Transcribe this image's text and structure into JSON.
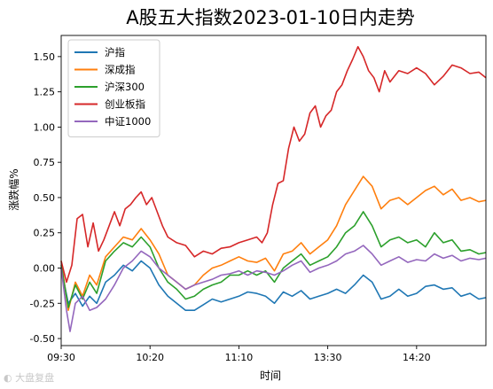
{
  "chart_data": {
    "type": "line",
    "title": "A股五大指数2023-01-10日内走势",
    "xlabel": "时间",
    "ylabel": "涨跌幅%",
    "ylim": [
      -0.55,
      1.65
    ],
    "yticks": [
      "-0.50",
      "-0.25",
      "0.00",
      "0.25",
      "0.50",
      "0.75",
      "1.00",
      "1.25",
      "1.50"
    ],
    "yticks_values": [
      -0.5,
      -0.25,
      0,
      0.25,
      0.5,
      0.75,
      1.0,
      1.25,
      1.5
    ],
    "xticks": [
      "09:30",
      "10:20",
      "11:10",
      "13:30",
      "14:20"
    ],
    "xticks_index": [
      0,
      50,
      100,
      150,
      200
    ],
    "x_count": 240,
    "legend_position": "top-left",
    "grid": false,
    "series": [
      {
        "name": "沪指",
        "color": "#1f77b4",
        "points": [
          [
            0,
            0.0
          ],
          [
            4,
            -0.25
          ],
          [
            8,
            -0.18
          ],
          [
            12,
            -0.27
          ],
          [
            16,
            -0.2
          ],
          [
            20,
            -0.25
          ],
          [
            25,
            -0.1
          ],
          [
            30,
            -0.05
          ],
          [
            35,
            0.02
          ],
          [
            40,
            -0.02
          ],
          [
            45,
            0.05
          ],
          [
            50,
            0.0
          ],
          [
            55,
            -0.12
          ],
          [
            60,
            -0.2
          ],
          [
            65,
            -0.25
          ],
          [
            70,
            -0.3
          ],
          [
            75,
            -0.3
          ],
          [
            80,
            -0.26
          ],
          [
            85,
            -0.22
          ],
          [
            90,
            -0.24
          ],
          [
            95,
            -0.22
          ],
          [
            100,
            -0.2
          ],
          [
            105,
            -0.17
          ],
          [
            110,
            -0.18
          ],
          [
            115,
            -0.2
          ],
          [
            120,
            -0.25
          ],
          [
            125,
            -0.17
          ],
          [
            130,
            -0.2
          ],
          [
            135,
            -0.16
          ],
          [
            140,
            -0.22
          ],
          [
            145,
            -0.2
          ],
          [
            150,
            -0.18
          ],
          [
            155,
            -0.15
          ],
          [
            160,
            -0.18
          ],
          [
            165,
            -0.12
          ],
          [
            170,
            -0.05
          ],
          [
            175,
            -0.1
          ],
          [
            180,
            -0.22
          ],
          [
            185,
            -0.2
          ],
          [
            190,
            -0.15
          ],
          [
            195,
            -0.2
          ],
          [
            200,
            -0.18
          ],
          [
            205,
            -0.13
          ],
          [
            210,
            -0.12
          ],
          [
            215,
            -0.15
          ],
          [
            220,
            -0.14
          ],
          [
            225,
            -0.2
          ],
          [
            230,
            -0.18
          ],
          [
            235,
            -0.22
          ],
          [
            239,
            -0.21
          ]
        ]
      },
      {
        "name": "深成指",
        "color": "#ff7f0e",
        "points": [
          [
            0,
            0.05
          ],
          [
            4,
            -0.3
          ],
          [
            8,
            -0.1
          ],
          [
            12,
            -0.2
          ],
          [
            16,
            -0.05
          ],
          [
            20,
            -0.12
          ],
          [
            25,
            0.08
          ],
          [
            30,
            0.15
          ],
          [
            35,
            0.22
          ],
          [
            40,
            0.2
          ],
          [
            45,
            0.28
          ],
          [
            50,
            0.2
          ],
          [
            55,
            0.1
          ],
          [
            60,
            -0.05
          ],
          [
            65,
            -0.1
          ],
          [
            70,
            -0.15
          ],
          [
            75,
            -0.12
          ],
          [
            80,
            -0.05
          ],
          [
            85,
            0.0
          ],
          [
            90,
            0.02
          ],
          [
            95,
            0.05
          ],
          [
            100,
            0.08
          ],
          [
            105,
            0.05
          ],
          [
            110,
            0.04
          ],
          [
            115,
            0.07
          ],
          [
            120,
            -0.02
          ],
          [
            125,
            0.1
          ],
          [
            130,
            0.12
          ],
          [
            135,
            0.18
          ],
          [
            140,
            0.1
          ],
          [
            145,
            0.15
          ],
          [
            150,
            0.2
          ],
          [
            155,
            0.3
          ],
          [
            160,
            0.45
          ],
          [
            165,
            0.55
          ],
          [
            170,
            0.65
          ],
          [
            175,
            0.58
          ],
          [
            180,
            0.42
          ],
          [
            185,
            0.48
          ],
          [
            190,
            0.5
          ],
          [
            195,
            0.45
          ],
          [
            200,
            0.5
          ],
          [
            205,
            0.55
          ],
          [
            210,
            0.58
          ],
          [
            215,
            0.52
          ],
          [
            220,
            0.56
          ],
          [
            225,
            0.48
          ],
          [
            230,
            0.5
          ],
          [
            235,
            0.47
          ],
          [
            239,
            0.48
          ]
        ]
      },
      {
        "name": "沪深300",
        "color": "#2ca02c",
        "points": [
          [
            0,
            0.02
          ],
          [
            4,
            -0.28
          ],
          [
            8,
            -0.12
          ],
          [
            12,
            -0.22
          ],
          [
            16,
            -0.1
          ],
          [
            20,
            -0.18
          ],
          [
            25,
            0.05
          ],
          [
            30,
            0.12
          ],
          [
            35,
            0.18
          ],
          [
            40,
            0.15
          ],
          [
            45,
            0.22
          ],
          [
            50,
            0.15
          ],
          [
            55,
            0.0
          ],
          [
            60,
            -0.1
          ],
          [
            65,
            -0.15
          ],
          [
            70,
            -0.22
          ],
          [
            75,
            -0.2
          ],
          [
            80,
            -0.15
          ],
          [
            85,
            -0.12
          ],
          [
            90,
            -0.1
          ],
          [
            95,
            -0.05
          ],
          [
            100,
            -0.05
          ],
          [
            105,
            -0.02
          ],
          [
            110,
            -0.05
          ],
          [
            115,
            -0.02
          ],
          [
            120,
            -0.1
          ],
          [
            125,
            0.0
          ],
          [
            130,
            0.05
          ],
          [
            135,
            0.1
          ],
          [
            140,
            0.02
          ],
          [
            145,
            0.05
          ],
          [
            150,
            0.08
          ],
          [
            155,
            0.15
          ],
          [
            160,
            0.25
          ],
          [
            165,
            0.3
          ],
          [
            170,
            0.4
          ],
          [
            175,
            0.3
          ],
          [
            180,
            0.15
          ],
          [
            185,
            0.2
          ],
          [
            190,
            0.22
          ],
          [
            195,
            0.18
          ],
          [
            200,
            0.2
          ],
          [
            205,
            0.15
          ],
          [
            210,
            0.25
          ],
          [
            215,
            0.18
          ],
          [
            220,
            0.2
          ],
          [
            225,
            0.12
          ],
          [
            230,
            0.13
          ],
          [
            235,
            0.1
          ],
          [
            239,
            0.11
          ]
        ]
      },
      {
        "name": "创业板指",
        "color": "#d62728",
        "points": [
          [
            0,
            0.05
          ],
          [
            3,
            -0.1
          ],
          [
            6,
            0.02
          ],
          [
            9,
            0.35
          ],
          [
            12,
            0.38
          ],
          [
            15,
            0.15
          ],
          [
            18,
            0.32
          ],
          [
            21,
            0.12
          ],
          [
            24,
            0.2
          ],
          [
            27,
            0.3
          ],
          [
            30,
            0.4
          ],
          [
            33,
            0.3
          ],
          [
            36,
            0.42
          ],
          [
            39,
            0.45
          ],
          [
            42,
            0.5
          ],
          [
            45,
            0.54
          ],
          [
            48,
            0.45
          ],
          [
            51,
            0.5
          ],
          [
            54,
            0.4
          ],
          [
            57,
            0.3
          ],
          [
            60,
            0.22
          ],
          [
            65,
            0.18
          ],
          [
            70,
            0.16
          ],
          [
            75,
            0.08
          ],
          [
            80,
            0.12
          ],
          [
            85,
            0.1
          ],
          [
            90,
            0.14
          ],
          [
            95,
            0.15
          ],
          [
            100,
            0.18
          ],
          [
            105,
            0.2
          ],
          [
            110,
            0.22
          ],
          [
            113,
            0.18
          ],
          [
            116,
            0.25
          ],
          [
            119,
            0.45
          ],
          [
            122,
            0.6
          ],
          [
            125,
            0.62
          ],
          [
            128,
            0.85
          ],
          [
            131,
            1.0
          ],
          [
            134,
            0.9
          ],
          [
            137,
            0.95
          ],
          [
            140,
            1.1
          ],
          [
            143,
            1.15
          ],
          [
            146,
            1.0
          ],
          [
            149,
            1.08
          ],
          [
            152,
            1.12
          ],
          [
            155,
            1.25
          ],
          [
            158,
            1.3
          ],
          [
            161,
            1.4
          ],
          [
            164,
            1.48
          ],
          [
            167,
            1.57
          ],
          [
            170,
            1.5
          ],
          [
            173,
            1.4
          ],
          [
            176,
            1.35
          ],
          [
            179,
            1.25
          ],
          [
            182,
            1.4
          ],
          [
            185,
            1.32
          ],
          [
            190,
            1.4
          ],
          [
            195,
            1.38
          ],
          [
            200,
            1.42
          ],
          [
            205,
            1.38
          ],
          [
            210,
            1.3
          ],
          [
            215,
            1.36
          ],
          [
            220,
            1.44
          ],
          [
            225,
            1.42
          ],
          [
            230,
            1.38
          ],
          [
            235,
            1.39
          ],
          [
            239,
            1.35
          ]
        ]
      },
      {
        "name": "中证1000",
        "color": "#9467bd",
        "points": [
          [
            0,
            0.0
          ],
          [
            3,
            -0.3
          ],
          [
            5,
            -0.45
          ],
          [
            8,
            -0.25
          ],
          [
            12,
            -0.2
          ],
          [
            16,
            -0.3
          ],
          [
            20,
            -0.28
          ],
          [
            25,
            -0.22
          ],
          [
            30,
            -0.12
          ],
          [
            35,
            0.0
          ],
          [
            40,
            0.05
          ],
          [
            45,
            0.12
          ],
          [
            50,
            0.08
          ],
          [
            55,
            0.0
          ],
          [
            60,
            -0.05
          ],
          [
            65,
            -0.1
          ],
          [
            70,
            -0.15
          ],
          [
            75,
            -0.12
          ],
          [
            80,
            -0.1
          ],
          [
            85,
            -0.08
          ],
          [
            90,
            -0.05
          ],
          [
            95,
            -0.04
          ],
          [
            100,
            -0.02
          ],
          [
            105,
            -0.05
          ],
          [
            110,
            -0.02
          ],
          [
            115,
            -0.03
          ],
          [
            120,
            -0.05
          ],
          [
            125,
            -0.02
          ],
          [
            130,
            0.02
          ],
          [
            135,
            0.05
          ],
          [
            140,
            -0.03
          ],
          [
            145,
            0.0
          ],
          [
            150,
            0.02
          ],
          [
            155,
            0.05
          ],
          [
            160,
            0.1
          ],
          [
            165,
            0.12
          ],
          [
            170,
            0.16
          ],
          [
            175,
            0.1
          ],
          [
            180,
            0.02
          ],
          [
            185,
            0.05
          ],
          [
            190,
            0.08
          ],
          [
            195,
            0.04
          ],
          [
            200,
            0.06
          ],
          [
            205,
            0.05
          ],
          [
            210,
            0.1
          ],
          [
            215,
            0.07
          ],
          [
            220,
            0.09
          ],
          [
            225,
            0.05
          ],
          [
            230,
            0.07
          ],
          [
            235,
            0.06
          ],
          [
            239,
            0.07
          ]
        ]
      }
    ]
  },
  "watermark_text": "大盘复盘"
}
